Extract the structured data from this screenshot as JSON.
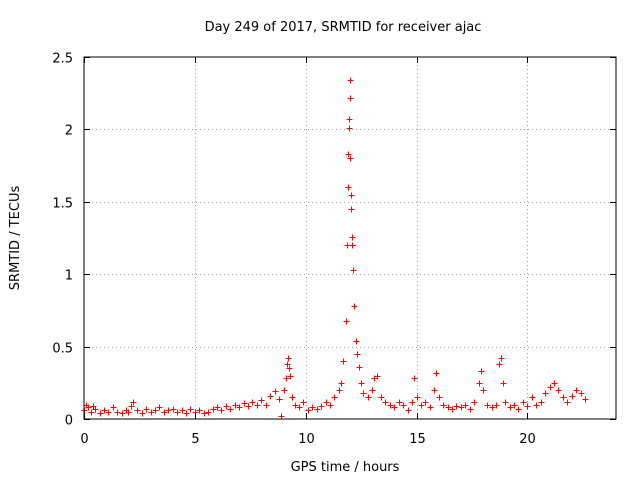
{
  "chart_data": {
    "type": "scatter",
    "title": "Day 249 of 2017, SRMTID for receiver ajac",
    "xlabel": "GPS time / hours",
    "ylabel": "SRMTID / TECUs",
    "xlim": [
      0,
      24
    ],
    "ylim": [
      0,
      2.5
    ],
    "x_ticks": [
      0,
      5,
      10,
      15,
      20
    ],
    "x_tick_labels": [
      "0",
      "5",
      "10",
      "15",
      "20"
    ],
    "y_ticks": [
      0,
      0.5,
      1,
      1.5,
      2,
      2.5
    ],
    "y_tick_labels": [
      "0",
      "0.5",
      "1",
      "1.5",
      "2",
      "2.5"
    ],
    "grid": true,
    "marker": "+",
    "color": "#ff0000",
    "series": [
      {
        "name": "SRMTID",
        "x": [
          0.0,
          0.1,
          0.2,
          0.3,
          0.4,
          0.5,
          0.7,
          0.9,
          1.1,
          1.3,
          1.5,
          1.7,
          1.9,
          2.0,
          2.1,
          2.2,
          2.4,
          2.6,
          2.8,
          3.0,
          3.2,
          3.4,
          3.6,
          3.8,
          4.0,
          4.2,
          4.4,
          4.6,
          4.8,
          5.0,
          5.2,
          5.4,
          5.6,
          5.8,
          6.0,
          6.2,
          6.4,
          6.6,
          6.8,
          7.0,
          7.2,
          7.4,
          7.6,
          7.8,
          8.0,
          8.2,
          8.4,
          8.6,
          8.8,
          8.9,
          9.0,
          9.1,
          9.15,
          9.2,
          9.25,
          9.3,
          9.4,
          9.5,
          9.7,
          9.9,
          10.1,
          10.3,
          10.5,
          10.7,
          10.9,
          11.1,
          11.3,
          11.5,
          11.6,
          11.7,
          11.8,
          11.85,
          11.9,
          11.92,
          11.94,
          11.96,
          11.98,
          12.0,
          12.02,
          12.04,
          12.06,
          12.08,
          12.1,
          12.15,
          12.2,
          12.25,
          12.3,
          12.4,
          12.5,
          12.6,
          12.8,
          13.0,
          13.1,
          13.2,
          13.4,
          13.6,
          13.8,
          14.0,
          14.2,
          14.4,
          14.6,
          14.8,
          14.9,
          15.0,
          15.2,
          15.4,
          15.6,
          15.8,
          15.9,
          16.0,
          16.2,
          16.4,
          16.6,
          16.8,
          17.0,
          17.2,
          17.4,
          17.6,
          17.8,
          17.9,
          18.0,
          18.2,
          18.4,
          18.6,
          18.7,
          18.8,
          18.9,
          19.0,
          19.2,
          19.4,
          19.6,
          19.8,
          20.0,
          20.2,
          20.4,
          20.6,
          20.8,
          21.0,
          21.2,
          21.4,
          21.6,
          21.8,
          22.0,
          22.2,
          22.4,
          22.6
        ],
        "y": [
          0.06,
          0.1,
          0.08,
          0.05,
          0.09,
          0.07,
          0.04,
          0.06,
          0.05,
          0.08,
          0.05,
          0.04,
          0.06,
          0.05,
          0.09,
          0.12,
          0.06,
          0.04,
          0.07,
          0.05,
          0.06,
          0.08,
          0.05,
          0.06,
          0.07,
          0.05,
          0.06,
          0.04,
          0.07,
          0.05,
          0.06,
          0.04,
          0.05,
          0.07,
          0.08,
          0.06,
          0.09,
          0.07,
          0.1,
          0.08,
          0.11,
          0.09,
          0.12,
          0.1,
          0.13,
          0.1,
          0.16,
          0.19,
          0.14,
          0.02,
          0.2,
          0.28,
          0.38,
          0.42,
          0.35,
          0.3,
          0.15,
          0.1,
          0.08,
          0.12,
          0.06,
          0.08,
          0.07,
          0.09,
          0.12,
          0.1,
          0.15,
          0.2,
          0.25,
          0.4,
          0.68,
          1.2,
          1.6,
          1.83,
          2.01,
          2.07,
          2.22,
          2.34,
          1.8,
          1.55,
          1.45,
          1.26,
          1.2,
          1.03,
          0.78,
          0.54,
          0.45,
          0.36,
          0.25,
          0.18,
          0.15,
          0.2,
          0.28,
          0.3,
          0.15,
          0.12,
          0.1,
          0.08,
          0.12,
          0.1,
          0.06,
          0.12,
          0.28,
          0.15,
          0.1,
          0.12,
          0.08,
          0.2,
          0.32,
          0.15,
          0.1,
          0.08,
          0.07,
          0.09,
          0.08,
          0.1,
          0.07,
          0.12,
          0.25,
          0.33,
          0.2,
          0.1,
          0.08,
          0.1,
          0.38,
          0.42,
          0.25,
          0.12,
          0.08,
          0.1,
          0.07,
          0.12,
          0.09,
          0.15,
          0.1,
          0.12,
          0.18,
          0.22,
          0.25,
          0.2,
          0.15,
          0.12,
          0.16,
          0.2,
          0.18,
          0.14
        ]
      }
    ]
  }
}
